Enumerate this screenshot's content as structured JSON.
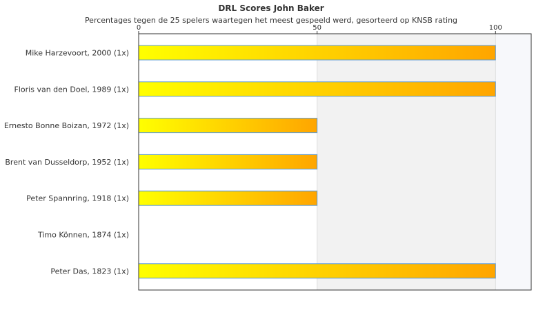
{
  "chart_data": {
    "type": "bar",
    "orientation": "horizontal",
    "title": "DRL Scores John Baker",
    "subtitle": "Percentages tegen de 25 spelers waartegen het meest gespeeld werd, gesorteerd op KNSB rating",
    "categories": [
      "Mike Harzevoort, 2000 (1x)",
      "Floris van den Doel, 1989 (1x)",
      "Ernesto Bonne Boizan, 1972 (1x)",
      "Brent van Dusseldorp, 1952 (1x)",
      "Peter Spannring, 1918 (1x)",
      "Timo Können, 1874 (1x)",
      "Peter Das, 1823 (1x)"
    ],
    "values": [
      100,
      100,
      50,
      50,
      50,
      0,
      100
    ],
    "xlim": [
      0,
      110
    ],
    "ticks": [
      0,
      50,
      100
    ],
    "tick_labels": [
      "0",
      "50",
      "100"
    ],
    "axis_position": "top",
    "grid": true,
    "colors": {
      "bar_start": "#ffff00",
      "bar_end": "#ffa500",
      "bar_border": "#5b9bd5",
      "band_1": "#ffffff",
      "band_2": "#f2f2f2",
      "band_3": "#f7f8fb",
      "axis": "#333333",
      "gridline": "#dddddd"
    }
  }
}
